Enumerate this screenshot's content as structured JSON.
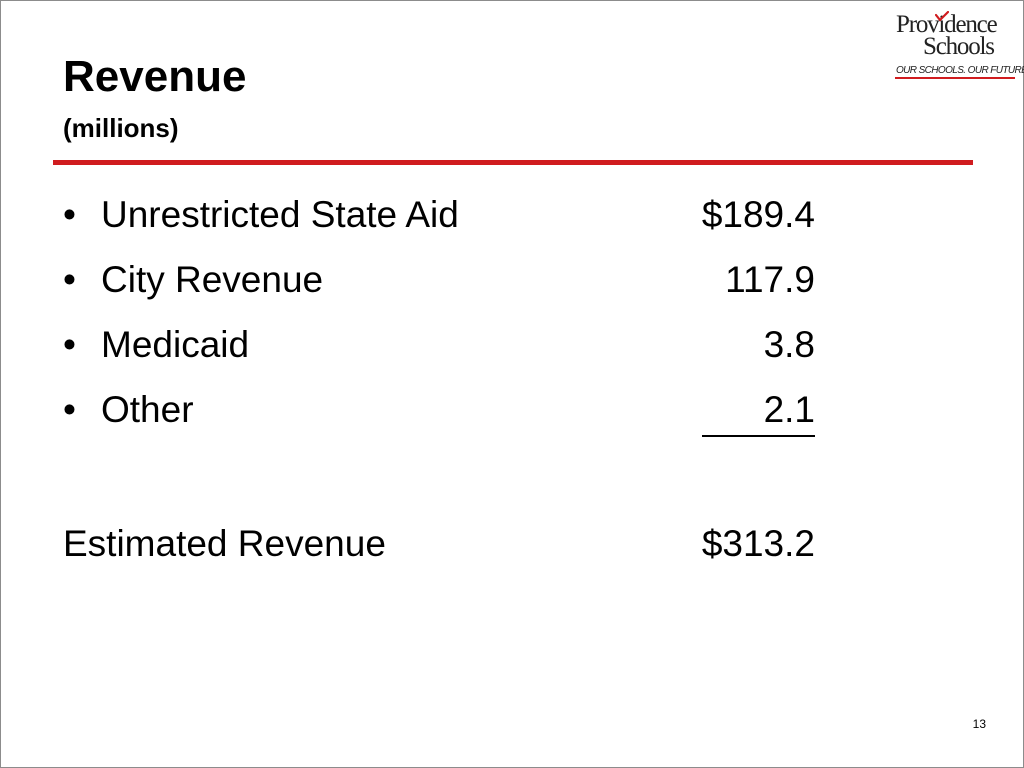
{
  "header": {
    "title": "Revenue",
    "subtitle": "(millions)"
  },
  "logo": {
    "line1": "Providence",
    "line2": "Schools",
    "tagline": "OUR SCHOOLS. OUR FUTURE",
    "accent_color": "#d01c1f"
  },
  "accent_color": "#d01c1f",
  "items": [
    {
      "bullet": "•",
      "label": "Unrestricted State Aid",
      "amount": "$189.4"
    },
    {
      "bullet": "•",
      "label": "City Revenue",
      "amount": "117.9"
    },
    {
      "bullet": "•",
      "label": "Medicaid",
      "amount": "3.8"
    },
    {
      "bullet": "•",
      "label": "Other",
      "amount": "2.1"
    }
  ],
  "total": {
    "label": "Estimated Revenue",
    "amount": "$313.2"
  },
  "page_number": "13"
}
